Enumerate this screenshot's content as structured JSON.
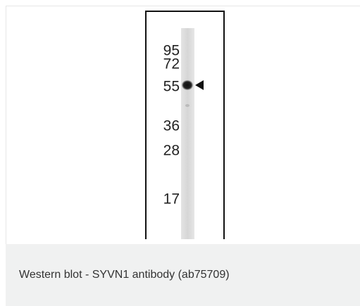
{
  "figure": {
    "markers": [
      "95",
      "72",
      "55",
      "36",
      "28",
      "17"
    ],
    "caption": "Western blot - SYVN1 antibody (ab75709)"
  }
}
